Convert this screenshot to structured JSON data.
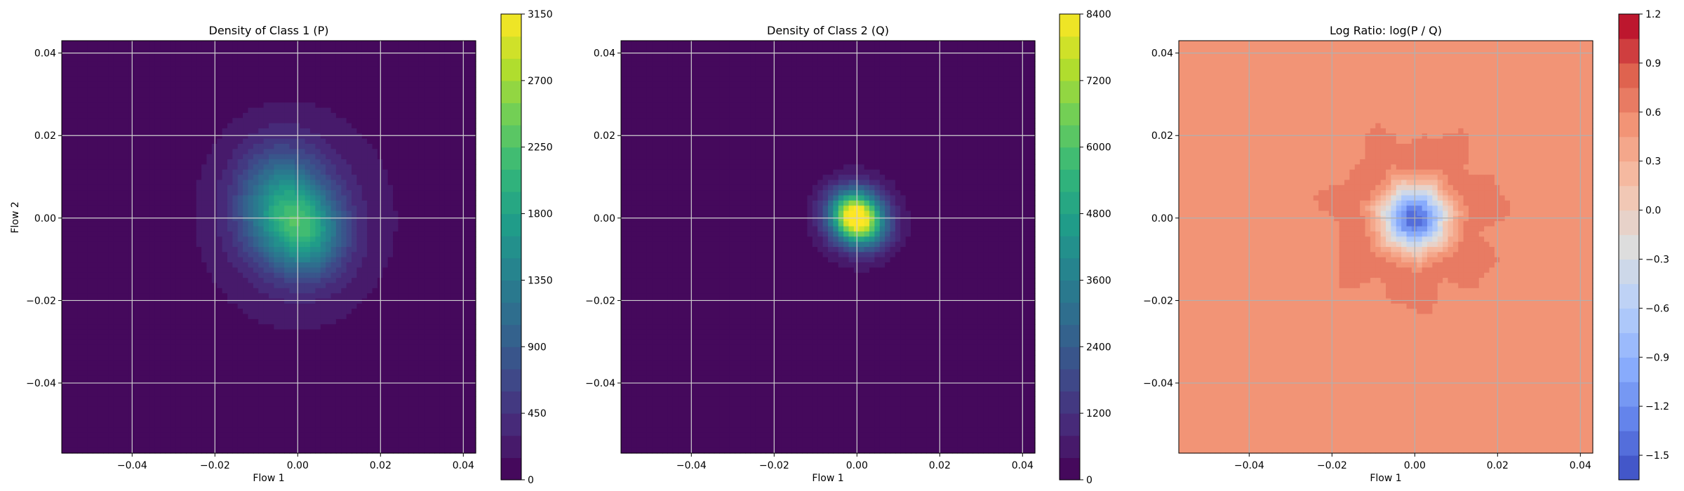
{
  "chart_data": [
    {
      "type": "heatmap",
      "title": "Density of Class 1 (P)",
      "xlabel": "Flow 1",
      "ylabel": "Flow 2",
      "xlim": [
        -0.057,
        0.043
      ],
      "ylim": [
        -0.057,
        0.043
      ],
      "x_ticks": [
        "−0.04",
        "−0.02",
        "0.00",
        "0.02",
        "0.04"
      ],
      "x_tick_values": [
        -0.04,
        -0.02,
        0.0,
        0.02,
        0.04
      ],
      "y_ticks": [
        "−0.04",
        "−0.02",
        "0.00",
        "0.02",
        "0.04"
      ],
      "y_tick_values": [
        -0.04,
        -0.02,
        0.0,
        0.02,
        0.04
      ],
      "grid": true,
      "colormap": "viridis",
      "colorbar": {
        "range": [
          0,
          3150
        ],
        "ticks": [
          "0",
          "450",
          "900",
          "1350",
          "1800",
          "2250",
          "2700",
          "3150"
        ],
        "tick_values": [
          0,
          450,
          900,
          1350,
          1800,
          2250,
          2700,
          3150
        ],
        "levels": 21
      },
      "density_peaks": [
        {
          "x": -0.004,
          "y": 0.003,
          "sx": 0.007,
          "sy": 0.009,
          "value": 1350
        },
        {
          "x": 0.003,
          "y": -0.004,
          "sx": 0.006,
          "sy": 0.007,
          "value": 1100
        },
        {
          "x": 0.0,
          "y": 0.0,
          "sx": 0.018,
          "sy": 0.02,
          "value": 350
        }
      ]
    },
    {
      "type": "heatmap",
      "title": "Density of Class 2 (Q)",
      "xlabel": "Flow 1",
      "ylabel": "",
      "xlim": [
        -0.057,
        0.043
      ],
      "ylim": [
        -0.057,
        0.043
      ],
      "x_ticks": [
        "−0.04",
        "−0.02",
        "0.00",
        "0.02",
        "0.04"
      ],
      "x_tick_values": [
        -0.04,
        -0.02,
        0.0,
        0.02,
        0.04
      ],
      "y_ticks": [
        "−0.04",
        "−0.02",
        "0.00",
        "0.02",
        "0.04"
      ],
      "y_tick_values": [
        -0.04,
        -0.02,
        0.0,
        0.02,
        0.04
      ],
      "grid": true,
      "colormap": "viridis",
      "colorbar": {
        "range": [
          0,
          8400
        ],
        "ticks": [
          "0",
          "1200",
          "2400",
          "3600",
          "4800",
          "6000",
          "7200",
          "8400"
        ],
        "tick_values": [
          0,
          1200,
          2400,
          3600,
          4800,
          6000,
          7200,
          8400
        ],
        "levels": 21
      },
      "density_peaks": [
        {
          "x": -0.001,
          "y": 0.001,
          "sx": 0.004,
          "sy": 0.004,
          "value": 6500
        },
        {
          "x": 0.002,
          "y": -0.002,
          "sx": 0.004,
          "sy": 0.004,
          "value": 3500
        },
        {
          "x": 0.0,
          "y": 0.0,
          "sx": 0.0085,
          "sy": 0.0085,
          "value": 900
        }
      ]
    },
    {
      "type": "heatmap",
      "title": "Log Ratio: log(P / Q)",
      "xlabel": "Flow 1",
      "ylabel": "",
      "xlim": [
        -0.057,
        0.043
      ],
      "ylim": [
        -0.057,
        0.043
      ],
      "x_ticks": [
        "−0.04",
        "−0.02",
        "0.00",
        "0.02",
        "0.04"
      ],
      "x_tick_values": [
        -0.04,
        -0.02,
        0.0,
        0.02,
        0.04
      ],
      "y_ticks": [
        "−0.04",
        "−0.02",
        "0.00",
        "0.02",
        "0.04"
      ],
      "y_tick_values": [
        -0.04,
        -0.02,
        0.0,
        0.02,
        0.04
      ],
      "grid": true,
      "colormap": "coolwarm",
      "colorbar": {
        "range": [
          -1.65,
          1.2
        ],
        "ticks": [
          "−1.5",
          "−1.2",
          "−0.9",
          "−0.6",
          "−0.3",
          "0.0",
          "0.3",
          "0.6",
          "0.9",
          "1.2"
        ],
        "tick_values": [
          -1.5,
          -1.2,
          -0.9,
          -0.6,
          -0.3,
          0.0,
          0.3,
          0.6,
          0.9,
          1.2
        ],
        "levels": 19
      },
      "field": {
        "background": 0.45,
        "ring_peak": 0.75,
        "ring_radius": 0.014,
        "center_min": -1.5,
        "center_x": 0.0,
        "center_y": 0.0
      }
    }
  ]
}
